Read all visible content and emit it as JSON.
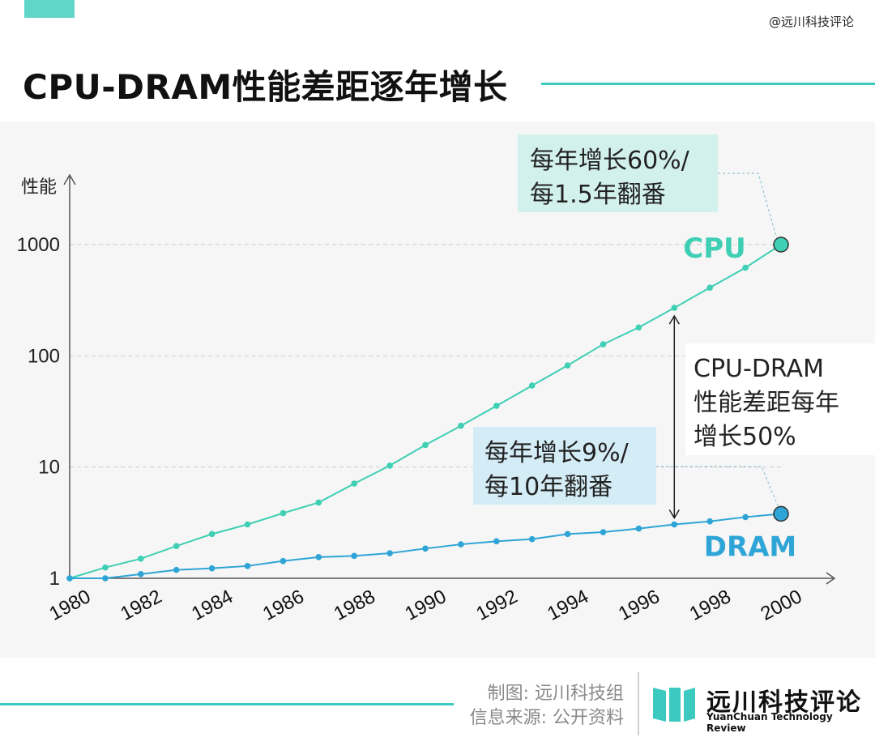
{
  "header": {
    "title": "CPU-DRAM性能差距逐年增长",
    "watermark": "@远川科技评论"
  },
  "chart_data": {
    "type": "line",
    "ylabel": "性能",
    "yscale": "log",
    "ylim": [
      1,
      1000
    ],
    "yticks": [
      "1",
      "10",
      "100",
      "1000"
    ],
    "xlim": [
      1980,
      2000
    ],
    "xticks": [
      "1980",
      "1982",
      "1984",
      "1986",
      "1988",
      "1990",
      "1992",
      "1994",
      "1996",
      "1998",
      "2000"
    ],
    "x": [
      1980,
      1981,
      1982,
      1983,
      1984,
      1985,
      1986,
      1987,
      1988,
      1989,
      1990,
      1991,
      1992,
      1993,
      1994,
      1995,
      1996,
      1997,
      1998,
      1999,
      2000
    ],
    "grid": "horizontal dashed",
    "series": [
      {
        "name": "CPU",
        "color": "#3ecfb4",
        "values": [
          1,
          1.25,
          1.5,
          1.95,
          2.5,
          3.05,
          3.85,
          4.8,
          7.1,
          10.3,
          15.8,
          23.5,
          35.5,
          54,
          82,
          127,
          180,
          270,
          410,
          620,
          1000
        ]
      },
      {
        "name": "DRAM",
        "color": "#2ea5d6",
        "values": [
          1,
          1.0,
          1.09,
          1.19,
          1.23,
          1.29,
          1.43,
          1.55,
          1.59,
          1.68,
          1.85,
          2.02,
          2.15,
          2.25,
          2.5,
          2.6,
          2.8,
          3.05,
          3.25,
          3.55,
          3.8
        ]
      }
    ],
    "annotations": {
      "cpu_note": [
        "每年增长60%/",
        "每1.5年翻番"
      ],
      "dram_note": [
        "每年增长9%/",
        "每10年翻番"
      ],
      "gap_note": [
        "CPU-DRAM",
        "性能差距每年",
        "增长50%"
      ]
    }
  },
  "footer": {
    "credit_line1": "制图: 远川科技组",
    "credit_line2": "信息来源: 公开资料",
    "logo_cn": "远川科技评论",
    "logo_en": "YuanChuan Technology Review"
  }
}
